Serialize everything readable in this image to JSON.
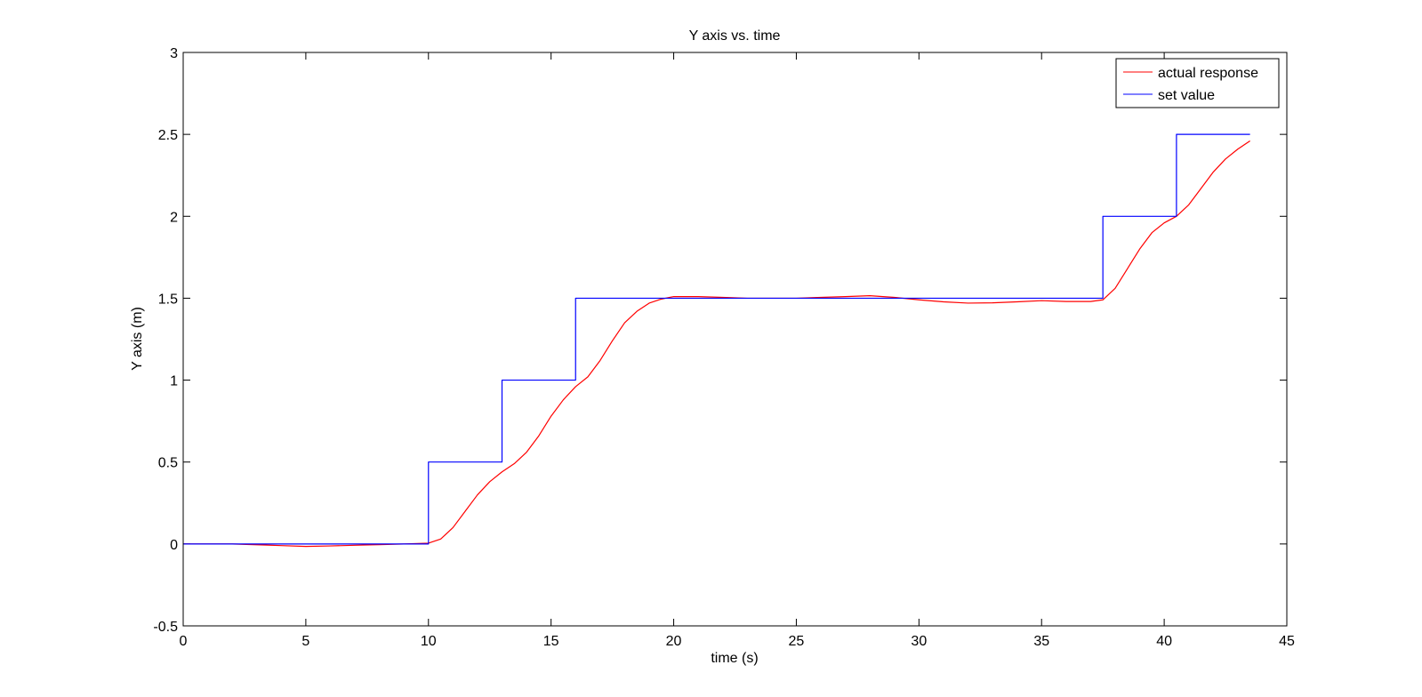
{
  "chart_data": {
    "type": "line",
    "title": "Y axis vs. time",
    "xlabel": "time (s)",
    "ylabel": "Y axis (m)",
    "xlim": [
      0,
      45
    ],
    "ylim": [
      -0.5,
      3
    ],
    "xticks": [
      0,
      5,
      10,
      15,
      20,
      25,
      30,
      35,
      40,
      45
    ],
    "yticks": [
      -0.5,
      0,
      0.5,
      1,
      1.5,
      2,
      2.5,
      3
    ],
    "grid": false,
    "legend_position": "top-right",
    "series": [
      {
        "name": "actual response",
        "color": "#ff0000",
        "x": [
          0,
          1,
          2,
          3,
          4,
          5,
          6,
          7,
          8,
          9,
          10,
          10.5,
          11,
          11.5,
          12,
          12.5,
          13,
          13.5,
          14,
          14.5,
          15,
          15.5,
          16,
          16.5,
          17,
          17.5,
          18,
          18.5,
          19,
          19.5,
          20,
          21,
          22,
          23,
          24,
          25,
          26,
          27,
          28,
          29,
          30,
          31,
          32,
          33,
          34,
          35,
          36,
          37,
          37.5,
          38,
          38.5,
          39,
          39.5,
          40,
          40.5,
          41,
          41.5,
          42,
          42.5,
          43,
          43.5
        ],
        "y": [
          0,
          0,
          0,
          -0.005,
          -0.01,
          -0.015,
          -0.012,
          -0.008,
          -0.004,
          0,
          0.005,
          0.03,
          0.1,
          0.2,
          0.3,
          0.38,
          0.44,
          0.49,
          0.56,
          0.66,
          0.78,
          0.88,
          0.96,
          1.02,
          1.12,
          1.24,
          1.35,
          1.42,
          1.47,
          1.495,
          1.51,
          1.51,
          1.505,
          1.5,
          1.5,
          1.5,
          1.505,
          1.51,
          1.515,
          1.505,
          1.49,
          1.478,
          1.47,
          1.472,
          1.478,
          1.485,
          1.48,
          1.48,
          1.49,
          1.56,
          1.68,
          1.8,
          1.9,
          1.96,
          2.0,
          2.07,
          2.17,
          2.27,
          2.35,
          2.41,
          2.46
        ]
      },
      {
        "name": "set value",
        "color": "#0000ff",
        "x": [
          0,
          10,
          10,
          13,
          13,
          16,
          16,
          37.5,
          37.5,
          40.5,
          40.5,
          43.5
        ],
        "y": [
          0,
          0,
          0.5,
          0.5,
          1.0,
          1.0,
          1.5,
          1.5,
          2.0,
          2.0,
          2.5,
          2.5
        ]
      }
    ]
  }
}
